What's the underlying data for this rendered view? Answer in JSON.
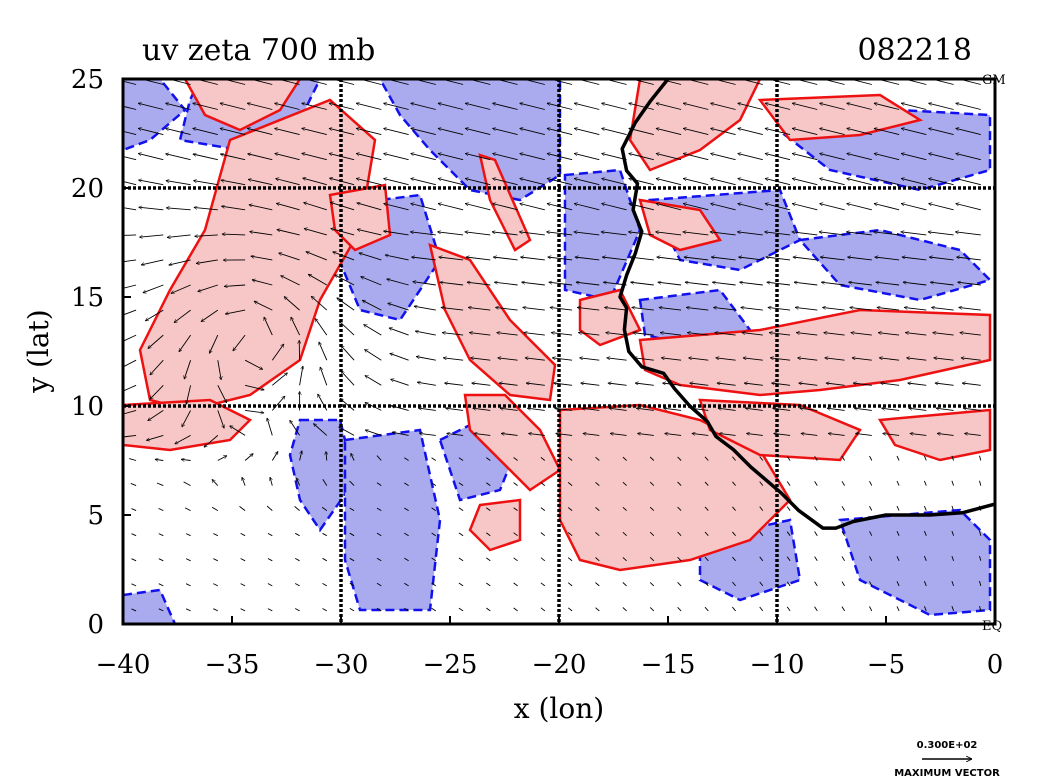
{
  "chart_data": {
    "type": "map",
    "title": "uv zeta 700 mb",
    "timestamp": "082218",
    "xlabel": "x (lon)",
    "ylabel": "y (lat)",
    "xlim": [
      -40,
      0
    ],
    "ylim": [
      0,
      25
    ],
    "x_ticks": [
      -40,
      -35,
      -30,
      -25,
      -20,
      -15,
      -10,
      -5,
      0
    ],
    "y_ticks": [
      0,
      5,
      10,
      15,
      20,
      25
    ],
    "grid_lines_x": [
      -30,
      -20,
      -10
    ],
    "grid_lines_y": [
      10,
      20
    ],
    "grid": true,
    "corner_labels": {
      "top_right": "GM",
      "bottom_right": "EQ"
    },
    "max_vector_label": "0.300E+02",
    "max_vector_caption": "MAXIMUM VECTOR",
    "series": [
      {
        "kind": "filled-contours",
        "color": "#f7c6c6",
        "line_color": "#ee1111"
      },
      {
        "kind": "filled-contours",
        "color": "#aaaaee",
        "line_color": "#1111ee"
      },
      {
        "kind": "vector-field",
        "color": "#000000"
      },
      {
        "kind": "coastline",
        "color": "#000000"
      }
    ],
    "coastline": [
      [
        -15.0,
        25.0
      ],
      [
        -15.8,
        24.0
      ],
      [
        -16.5,
        23.0
      ],
      [
        -17.1,
        21.8
      ],
      [
        -16.9,
        20.8
      ],
      [
        -16.4,
        20.2
      ],
      [
        -16.6,
        19.0
      ],
      [
        -16.2,
        18.0
      ],
      [
        -16.5,
        17.0
      ],
      [
        -16.9,
        16.0
      ],
      [
        -17.2,
        15.0
      ],
      [
        -16.9,
        14.5
      ],
      [
        -17.0,
        13.5
      ],
      [
        -16.8,
        12.5
      ],
      [
        -16.2,
        11.8
      ],
      [
        -15.2,
        11.5
      ],
      [
        -14.7,
        10.8
      ],
      [
        -14.0,
        10.0
      ],
      [
        -13.2,
        9.3
      ],
      [
        -12.8,
        8.6
      ],
      [
        -12.0,
        8.0
      ],
      [
        -11.2,
        7.2
      ],
      [
        -10.5,
        6.6
      ],
      [
        -9.8,
        6.0
      ],
      [
        -9.0,
        5.2
      ],
      [
        -7.9,
        4.4
      ],
      [
        -7.3,
        4.4
      ],
      [
        -6.5,
        4.7
      ],
      [
        -5.0,
        5.0
      ],
      [
        -3.0,
        5.0
      ],
      [
        -1.5,
        5.1
      ],
      [
        0.0,
        5.5
      ]
    ]
  }
}
